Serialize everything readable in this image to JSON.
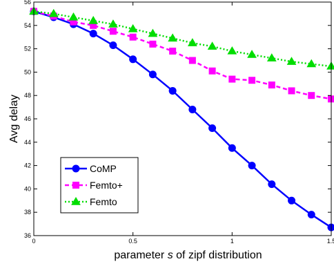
{
  "chart_data": {
    "type": "line",
    "xlabel": "parameter s of zipf distribution",
    "xlabel_parts": [
      "parameter ",
      "s",
      " of zipf distribution"
    ],
    "ylabel": "Avg delay",
    "xlim": [
      0,
      1.5
    ],
    "ylim": [
      36,
      56
    ],
    "x_ticks": [
      0,
      0.5,
      1,
      1.5
    ],
    "x_tick_labels": [
      "0",
      "0.5",
      "1",
      "1.5"
    ],
    "y_ticks": [
      36,
      38,
      40,
      42,
      44,
      46,
      48,
      50,
      52,
      54,
      56
    ],
    "y_tick_labels": [
      "36",
      "38",
      "40",
      "42",
      "44",
      "46",
      "48",
      "50",
      "52",
      "54",
      "56"
    ],
    "grid": false,
    "legend_position": "bottom-left",
    "x": [
      0,
      0.1,
      0.2,
      0.3,
      0.4,
      0.5,
      0.6,
      0.7,
      0.8,
      0.9,
      1.0,
      1.1,
      1.2,
      1.3,
      1.4,
      1.5
    ],
    "series": [
      {
        "name": "CoMP",
        "color": "#0000ff",
        "marker": "circle",
        "line_style": "solid",
        "values": [
          55.2,
          54.7,
          54.1,
          53.3,
          52.3,
          51.1,
          49.8,
          48.4,
          46.8,
          45.2,
          43.5,
          42.0,
          40.4,
          39.0,
          37.8,
          36.7
        ]
      },
      {
        "name": "Femto+",
        "color": "#ff00ff",
        "marker": "square",
        "line_style": "dashed",
        "values": [
          55.2,
          54.8,
          54.3,
          54.0,
          53.5,
          53.0,
          52.4,
          51.8,
          51.0,
          50.1,
          49.4,
          49.3,
          48.9,
          48.4,
          48.0,
          47.7
        ]
      },
      {
        "name": "Femto",
        "color": "#00dd00",
        "marker": "triangle",
        "line_style": "dotted",
        "values": [
          55.2,
          55.0,
          54.7,
          54.4,
          54.1,
          53.7,
          53.3,
          52.9,
          52.5,
          52.2,
          51.8,
          51.5,
          51.2,
          50.9,
          50.7,
          50.5
        ]
      }
    ]
  }
}
